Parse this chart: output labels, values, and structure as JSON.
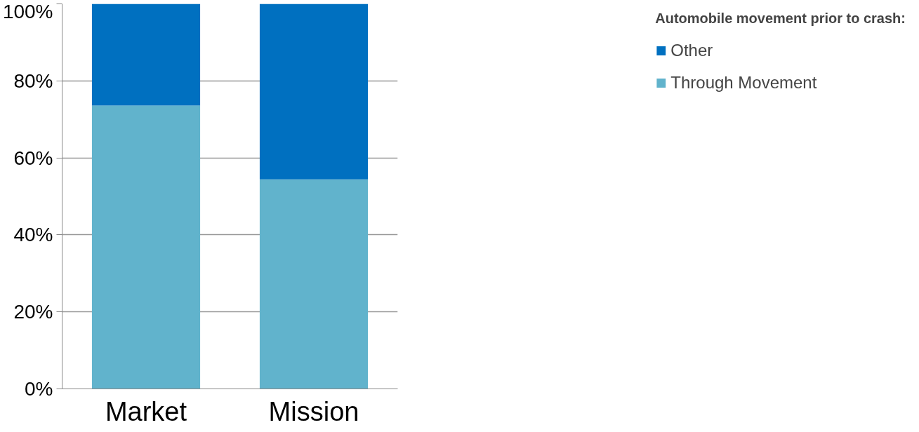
{
  "chart_data": {
    "type": "bar",
    "stacked": true,
    "categories": [
      "Market",
      "Mission"
    ],
    "series": [
      {
        "name": "Through Movement",
        "color": "#61b3cc",
        "values": [
          73.6,
          54.4
        ]
      },
      {
        "name": "Other",
        "color": "#0070c0",
        "values": [
          26.4,
          45.6
        ]
      }
    ],
    "ylim": [
      0,
      100
    ],
    "yticks": [
      {
        "value": 0,
        "label": "0%"
      },
      {
        "value": 20,
        "label": "20%"
      },
      {
        "value": 40,
        "label": "40%"
      },
      {
        "value": 60,
        "label": "60%"
      },
      {
        "value": 80,
        "label": "80%"
      },
      {
        "value": 100,
        "label": "100%"
      }
    ],
    "grid": "y",
    "legend": "right",
    "legend_title": "Automobile movement prior to crash:"
  }
}
